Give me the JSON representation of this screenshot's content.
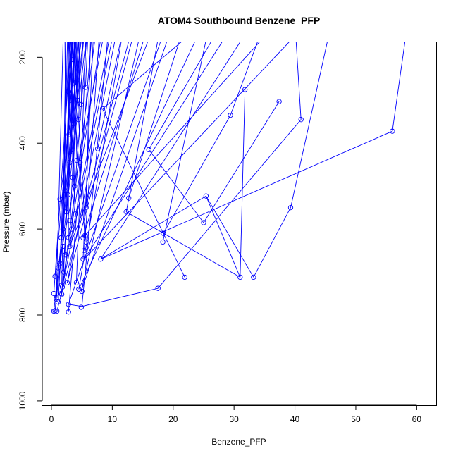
{
  "chart_data": {
    "type": "line",
    "title": "ATOM4 Southbound Benzene_PFP",
    "xlabel": "Benzene_PFP",
    "ylabel": "Pressure (mbar)",
    "xlim": [
      -1.5,
      63.2
    ],
    "ylim": [
      1010,
      165
    ],
    "y_inverted": true,
    "grid": false,
    "legend": "none",
    "x_ticks": [
      0,
      10,
      20,
      30,
      40,
      50,
      60
    ],
    "y_ticks": [
      200,
      400,
      600,
      800,
      1000
    ],
    "series_color": "#0000ff",
    "series": [
      {
        "marker": "open-circle",
        "points": [
          [
            0.4,
            750
          ],
          [
            0.6,
            790
          ],
          [
            0.8,
            760
          ],
          [
            0.6,
            710
          ],
          [
            1.1,
            770
          ],
          [
            1.6,
            750
          ],
          [
            1.7,
            730
          ],
          [
            1.4,
            680
          ],
          [
            2.0,
            700
          ],
          [
            1.9,
            640
          ],
          [
            1.6,
            620
          ],
          [
            1.9,
            600
          ],
          [
            1.4,
            530
          ],
          [
            2.2,
            510
          ],
          [
            2.7,
            520
          ],
          [
            2.4,
            560
          ],
          [
            3.1,
            580
          ],
          [
            2.8,
            620
          ],
          [
            3.3,
            600
          ],
          [
            3.5,
            480
          ],
          [
            3.0,
            445
          ],
          [
            3.3,
            425
          ],
          [
            2.9,
            380
          ],
          [
            3.6,
            355
          ],
          [
            3.1,
            300
          ],
          [
            2.8,
            280
          ],
          [
            3.7,
            260
          ],
          [
            3.4,
            205
          ],
          [
            4.3,
            300
          ],
          [
            5.6,
            270
          ],
          [
            4.4,
            345
          ],
          [
            4.9,
            310
          ],
          [
            4.2,
            440
          ],
          [
            4.7,
            445
          ],
          [
            3.8,
            500
          ],
          [
            5.2,
            620
          ],
          [
            5.4,
            650
          ],
          [
            5.2,
            670
          ],
          [
            5.7,
            630
          ],
          [
            5.5,
            615
          ],
          [
            5.7,
            550
          ],
          [
            4.1,
            725
          ],
          [
            5.0,
            745
          ],
          [
            8.4,
            320
          ],
          [
            12.3,
            560
          ],
          [
            16.0,
            415
          ],
          [
            21.9,
            712
          ],
          [
            7.6,
            413
          ],
          [
            12.7,
            528
          ],
          [
            18.4,
            610
          ],
          [
            18.3,
            630
          ],
          [
            25.4,
            523
          ],
          [
            25.0,
            585
          ],
          [
            29.4,
            335
          ],
          [
            31.8,
            275
          ],
          [
            31.0,
            712
          ],
          [
            33.2,
            712
          ],
          [
            37.4,
            303
          ],
          [
            41.0,
            345
          ],
          [
            39.3,
            550
          ],
          [
            56.0,
            372
          ],
          [
            17.5,
            738
          ],
          [
            4.9,
            782
          ],
          [
            2.8,
            775
          ],
          [
            2.8,
            793
          ],
          [
            0.9,
            791
          ],
          [
            0.4,
            791
          ],
          [
            8.1,
            670
          ],
          [
            4.5,
            740
          ],
          [
            2.6,
            725
          ],
          [
            0.8,
            763
          ],
          [
            1.7,
            752
          ],
          [
            2.3,
            660
          ],
          [
            3.9,
            565
          ],
          [
            1.1,
            690
          ],
          [
            3.0,
            640
          ],
          [
            1.8,
            735
          ]
        ],
        "segments": [
          [
            5.0,
            780,
            17.5,
            738
          ],
          [
            17.5,
            738,
            41.0,
            345
          ],
          [
            5.0,
            780,
            2.8,
            775
          ],
          [
            8.1,
            670,
            56.0,
            372
          ],
          [
            8.1,
            670,
            25.4,
            523
          ],
          [
            25.4,
            523,
            31.0,
            712
          ],
          [
            31.0,
            712,
            31.8,
            275
          ],
          [
            8.4,
            320,
            21.9,
            712
          ],
          [
            12.3,
            560,
            31.0,
            712
          ],
          [
            33.2,
            712,
            39.3,
            550
          ],
          [
            39.3,
            550,
            46.0,
            120
          ],
          [
            25.4,
            523,
            33.2,
            712
          ],
          [
            25.0,
            585,
            37.4,
            303
          ],
          [
            25.0,
            585,
            16.0,
            415
          ],
          [
            16.0,
            415,
            28.0,
            120
          ],
          [
            18.4,
            610,
            29.4,
            335
          ],
          [
            29.4,
            335,
            35.0,
            120
          ],
          [
            18.3,
            630,
            26.0,
            120
          ],
          [
            12.7,
            528,
            22.0,
            120
          ],
          [
            12.3,
            560,
            18.0,
            120
          ],
          [
            7.6,
            413,
            12.0,
            120
          ],
          [
            8.4,
            320,
            25.0,
            120
          ],
          [
            41.0,
            345,
            40.0,
            120
          ],
          [
            56.0,
            372,
            58.5,
            120
          ],
          [
            5.4,
            670,
            30.0,
            120
          ],
          [
            5.2,
            620,
            16.0,
            120
          ],
          [
            4.5,
            740,
            25.0,
            120
          ],
          [
            4.9,
            745,
            20.0,
            120
          ],
          [
            2.6,
            725,
            14.0,
            120
          ],
          [
            3.0,
            640,
            10.0,
            120
          ],
          [
            1.1,
            690,
            9.0,
            120
          ],
          [
            1.8,
            735,
            7.5,
            120
          ],
          [
            0.8,
            763,
            6.0,
            120
          ],
          [
            0.4,
            791,
            5.5,
            120
          ],
          [
            0.6,
            790,
            4.8,
            120
          ],
          [
            2.8,
            793,
            6.8,
            120
          ],
          [
            1.7,
            752,
            4.5,
            120
          ],
          [
            1.6,
            620,
            4.0,
            120
          ],
          [
            2.2,
            510,
            3.6,
            120
          ],
          [
            2.7,
            520,
            5.0,
            120
          ],
          [
            3.5,
            480,
            4.9,
            120
          ],
          [
            3.0,
            445,
            3.9,
            120
          ],
          [
            3.3,
            425,
            3.3,
            120
          ],
          [
            2.9,
            380,
            3.1,
            120
          ],
          [
            3.6,
            355,
            4.2,
            120
          ],
          [
            3.1,
            300,
            2.9,
            120
          ],
          [
            2.8,
            280,
            3.6,
            120
          ],
          [
            3.7,
            260,
            3.8,
            120
          ],
          [
            4.3,
            300,
            5.6,
            120
          ],
          [
            5.6,
            270,
            6.1,
            120
          ],
          [
            4.4,
            345,
            4.0,
            120
          ],
          [
            4.9,
            310,
            5.2,
            120
          ],
          [
            4.2,
            440,
            3.4,
            120
          ],
          [
            4.7,
            445,
            4.5,
            120
          ],
          [
            3.8,
            500,
            3.0,
            120
          ],
          [
            5.7,
            630,
            3.5,
            120
          ],
          [
            5.5,
            615,
            2.6,
            120
          ],
          [
            5.7,
            550,
            6.5,
            120
          ],
          [
            3.9,
            565,
            2.5,
            120
          ],
          [
            2.3,
            660,
            3.2,
            120
          ],
          [
            2.4,
            560,
            2.2,
            120
          ],
          [
            3.1,
            580,
            4.6,
            120
          ],
          [
            2.8,
            620,
            2.8,
            120
          ],
          [
            3.3,
            600,
            6.0,
            120
          ],
          [
            1.4,
            530,
            5.3,
            120
          ],
          [
            1.9,
            600,
            2.4,
            120
          ],
          [
            1.9,
            640,
            3.3,
            120
          ],
          [
            2.0,
            700,
            4.1,
            120
          ],
          [
            1.4,
            680,
            3.0,
            120
          ],
          [
            1.7,
            730,
            2.7,
            120
          ],
          [
            1.1,
            770,
            3.7,
            120
          ],
          [
            0.6,
            710,
            4.3,
            120
          ],
          [
            0.8,
            760,
            2.0,
            120
          ],
          [
            0.4,
            750,
            3.4,
            120
          ],
          [
            4.1,
            725,
            5.8,
            120
          ],
          [
            5.2,
            670,
            7.0,
            120
          ],
          [
            5.4,
            650,
            8.0,
            120
          ],
          [
            4.5,
            740,
            12.0,
            120
          ],
          [
            2.6,
            725,
            11.0,
            120
          ],
          [
            4.9,
            745,
            15.0,
            120
          ],
          [
            1.6,
            750,
            10.5,
            120
          ],
          [
            0.9,
            791,
            13.5,
            120
          ],
          [
            5.0,
            780,
            9.5,
            120
          ],
          [
            8.1,
            670,
            33.0,
            120
          ],
          [
            5.2,
            620,
            37.0,
            120
          ],
          [
            5.4,
            670,
            42.0,
            120
          ],
          [
            2.8,
            775,
            19.0,
            120
          ],
          [
            3.0,
            640,
            17.0,
            120
          ],
          [
            1.8,
            735,
            8.5,
            120
          ]
        ]
      }
    ]
  }
}
